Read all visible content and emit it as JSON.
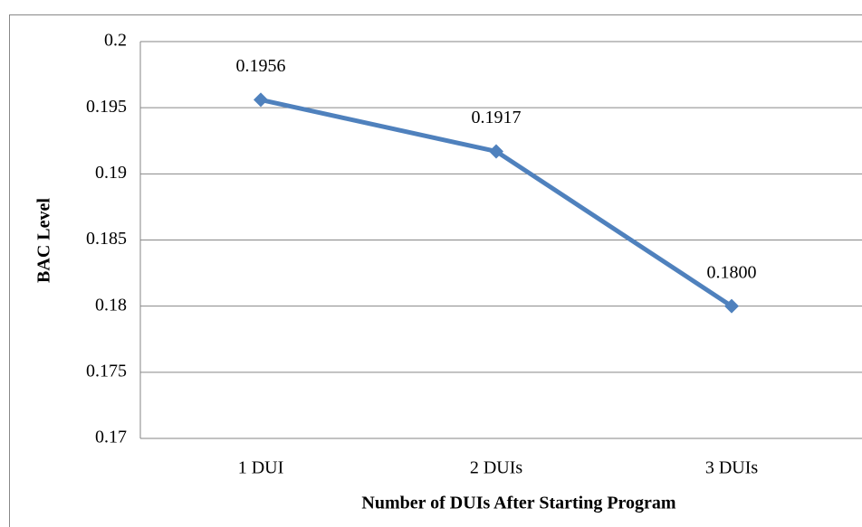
{
  "chart_data": {
    "type": "line",
    "categories": [
      "1 DUI",
      "2 DUIs",
      "3 DUIs"
    ],
    "series": [
      {
        "color": "#4f81bd",
        "values": [
          0.1956,
          0.1917,
          0.18
        ],
        "value_labels": [
          "0.1956",
          "0.1917",
          "0.1800"
        ]
      }
    ],
    "ylim": [
      0.17,
      0.2
    ],
    "yticks": [
      0.17,
      0.175,
      0.18,
      0.185,
      0.19,
      0.195,
      0.2
    ],
    "grid": true,
    "y_label": "BAC Level",
    "x_label": "Number of DUIs After Starting Program"
  }
}
